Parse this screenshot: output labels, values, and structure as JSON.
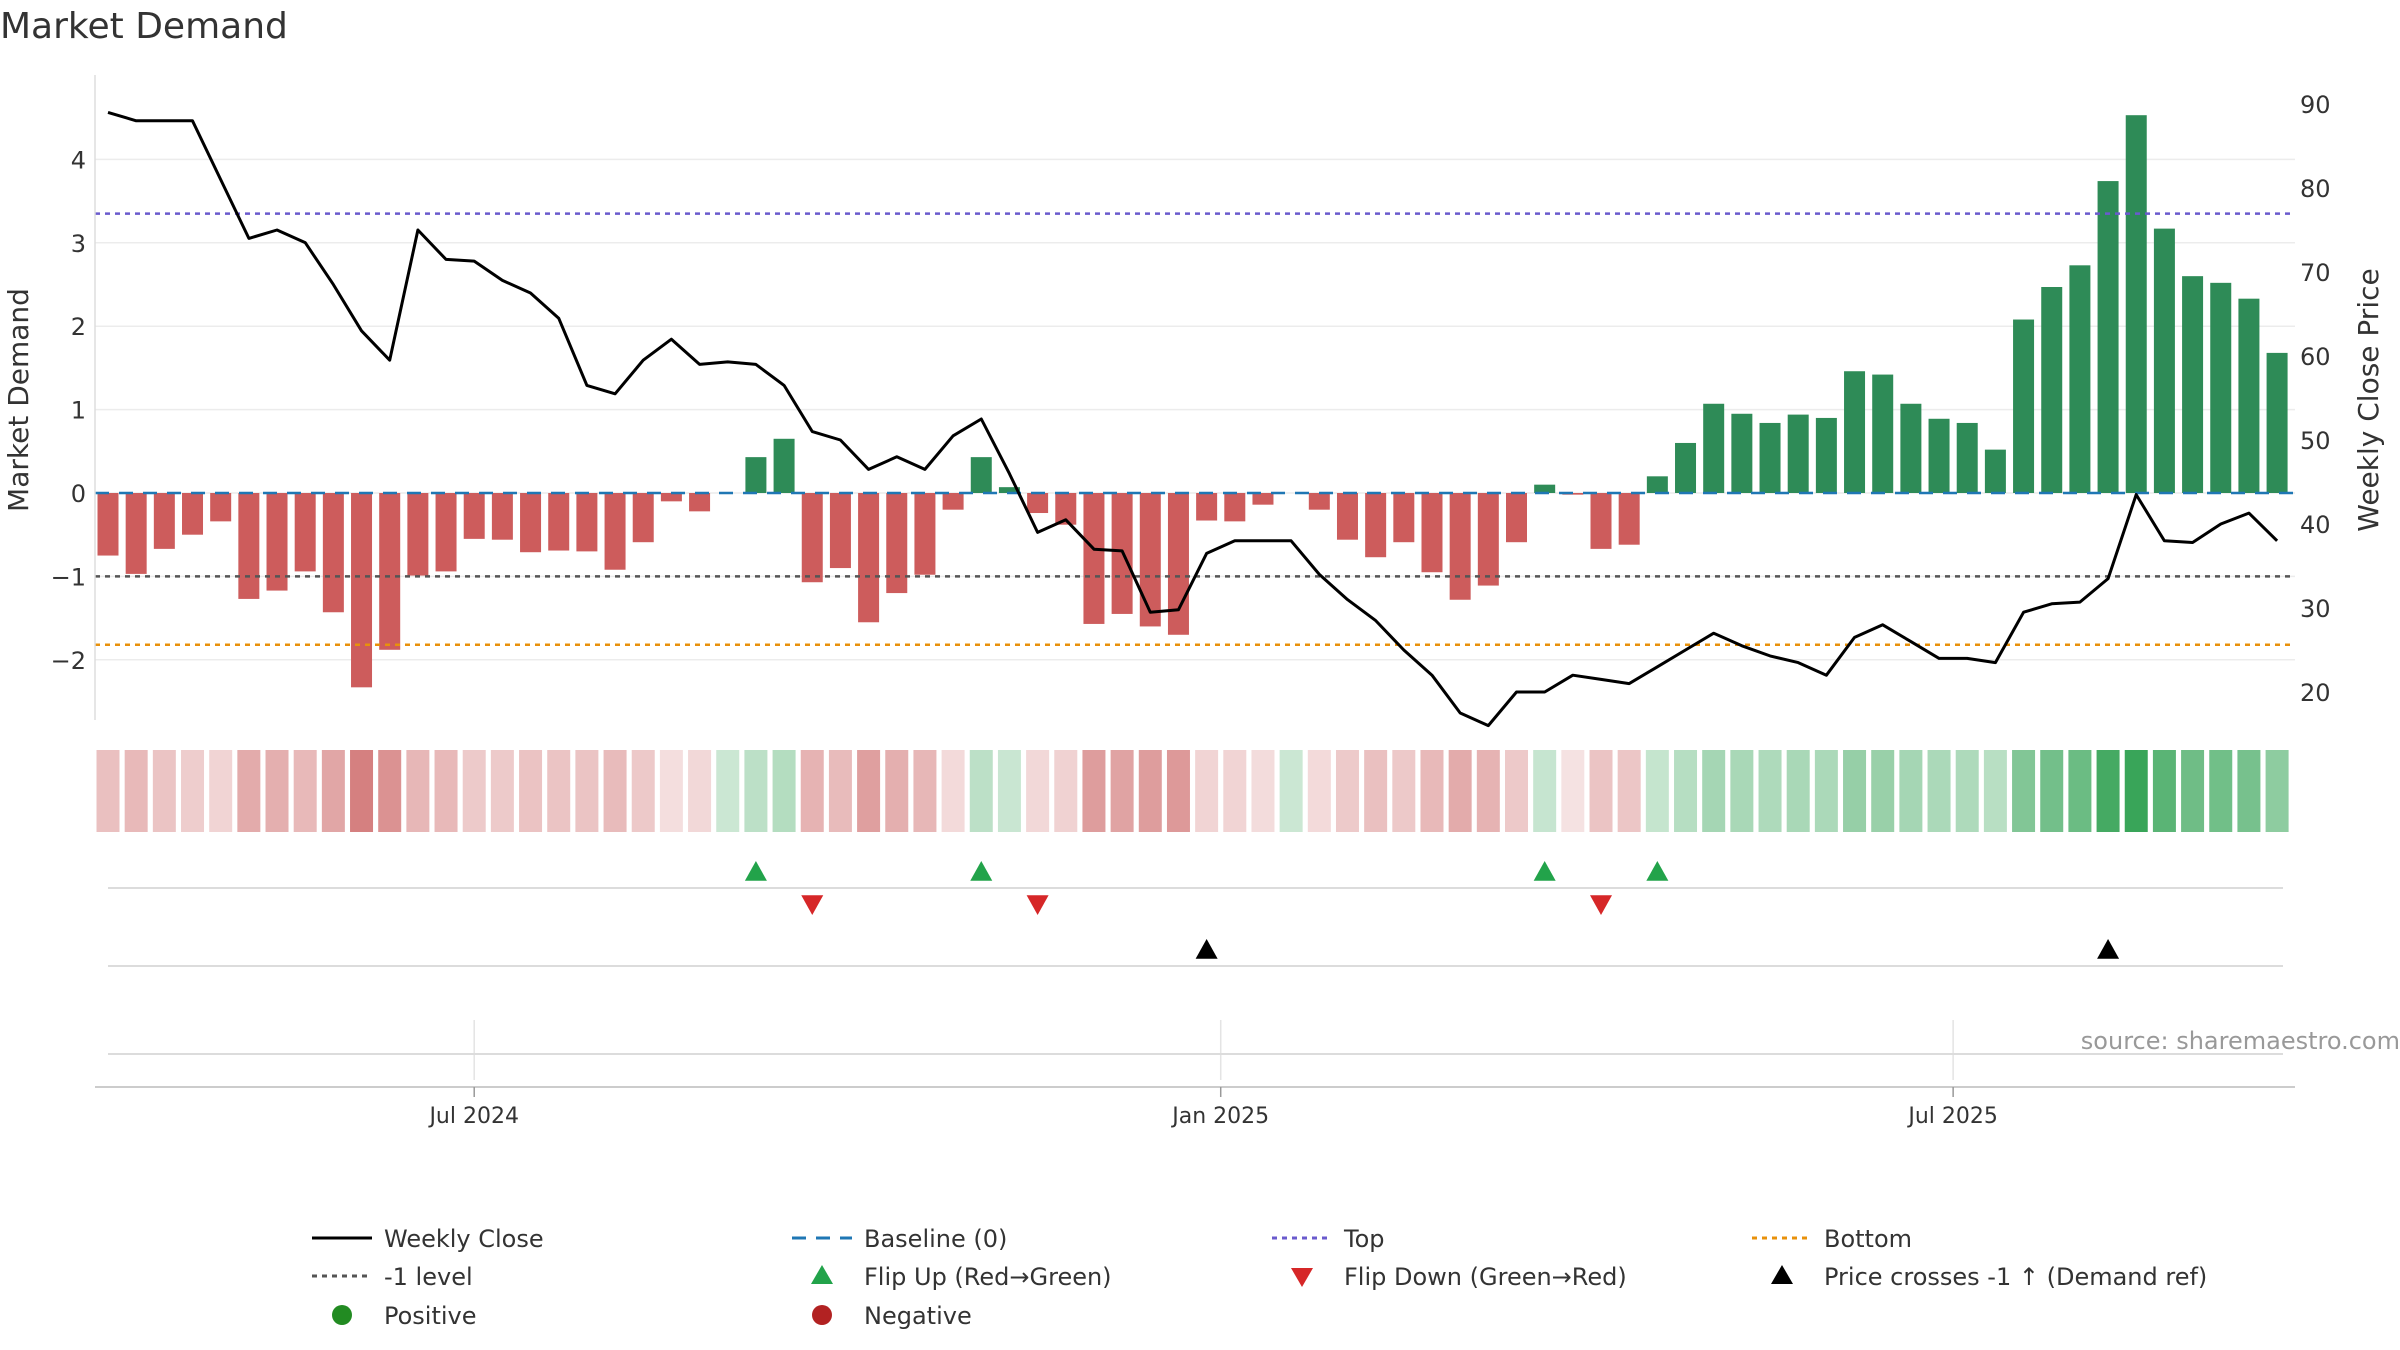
{
  "chart_data": {
    "type": "bar+line",
    "title": "Market Demand",
    "ylabel_left": "Market Demand",
    "ylabel_right": "Weekly Close Price",
    "ylim_left": [
      -2.7,
      5.0
    ],
    "ylim_right": [
      17,
      93
    ],
    "yticks_left": [
      {
        "value": -2,
        "label": "−2"
      },
      {
        "value": -1,
        "label": "−1"
      },
      {
        "value": 0,
        "label": "0"
      },
      {
        "value": 1,
        "label": "1"
      },
      {
        "value": 2,
        "label": "2"
      },
      {
        "value": 3,
        "label": "3"
      },
      {
        "value": 4,
        "label": "4"
      }
    ],
    "yticks_right": [
      20,
      30,
      40,
      50,
      60,
      70,
      80,
      90
    ],
    "x_tick_labels": [
      {
        "label": "Jul 2024",
        "week": 13
      },
      {
        "label": "Jan 2025",
        "week": 39.5
      },
      {
        "label": "Jul 2025",
        "week": 65.5
      }
    ],
    "lines": {
      "top": 3.35,
      "bottom": -1.82,
      "minus1": -1.0,
      "baseline": 0
    },
    "demand": [
      -0.75,
      -0.97,
      -0.67,
      -0.5,
      -0.34,
      -1.27,
      -1.17,
      -0.94,
      -1.43,
      -2.33,
      -1.88,
      -0.99,
      -0.94,
      -0.55,
      -0.56,
      -0.71,
      -0.69,
      -0.7,
      -0.92,
      -0.59,
      -0.1,
      -0.22,
      0.0,
      0.43,
      0.65,
      -1.07,
      -0.9,
      -1.55,
      -1.2,
      -0.98,
      -0.2,
      0.43,
      0.07,
      -0.24,
      -0.38,
      -1.57,
      -1.45,
      -1.6,
      -1.7,
      -0.33,
      -0.34,
      -0.14,
      0.0,
      -0.2,
      -0.56,
      -0.77,
      -0.59,
      -0.95,
      -1.28,
      -1.11,
      -0.59,
      0.1,
      -0.02,
      -0.67,
      -0.62,
      0.2,
      0.6,
      1.07,
      0.95,
      0.84,
      0.94,
      0.9,
      1.46,
      1.42,
      1.07,
      0.89,
      0.84,
      0.52,
      2.08,
      2.47,
      2.73,
      3.74,
      4.53,
      3.17,
      2.6,
      2.52,
      2.33,
      1.68
    ],
    "close": [
      89.0,
      88.0,
      88.0,
      88.0,
      81.0,
      74.0,
      75.0,
      73.5,
      68.5,
      63.0,
      59.5,
      75.0,
      71.5,
      71.3,
      69.0,
      67.5,
      64.5,
      56.5,
      55.5,
      59.5,
      62.0,
      59.0,
      59.3,
      59.0,
      56.5,
      51.0,
      50.0,
      46.5,
      48.0,
      46.5,
      50.5,
      52.5,
      46.0,
      39.0,
      40.5,
      37.0,
      36.8,
      29.5,
      29.8,
      36.5,
      38.0,
      38.0,
      38.0,
      34.0,
      31.0,
      28.5,
      25.0,
      22.0,
      17.5,
      16.0,
      20.0,
      20.0,
      22.0,
      21.5,
      21.0,
      23.0,
      25.0,
      27.0,
      25.5,
      24.3,
      23.5,
      22.0,
      26.5,
      28.0,
      26.0,
      24.0,
      24.0,
      23.5,
      29.5,
      30.5,
      30.7,
      33.5,
      43.5,
      38.0,
      37.8,
      40.0,
      41.3,
      38.0
    ],
    "heat_strip": "color intensity proportional to demand (green positive, red negative)",
    "flip_up_weeks": [
      23,
      31,
      51,
      55
    ],
    "flip_down_weeks": [
      25,
      33,
      53
    ],
    "price_cross_weeks": [
      39,
      71
    ],
    "legend": [
      {
        "label": "Weekly Close",
        "marker": "line",
        "color": "#000000"
      },
      {
        "label": "Baseline (0)",
        "marker": "dash",
        "color": "#1f77b4"
      },
      {
        "label": "Top",
        "marker": "dot",
        "color": "#6a5acd"
      },
      {
        "label": "Bottom",
        "marker": "dot",
        "color": "#e8910b"
      },
      {
        "label": "-1 level",
        "marker": "dot",
        "color": "#555555"
      },
      {
        "label": "Flip Up (Red→Green)",
        "marker": "tri-up",
        "color": "#22a34a"
      },
      {
        "label": "Flip Down (Green→Red)",
        "marker": "tri-down",
        "color": "#d62728"
      },
      {
        "label": "Price crosses -1 ↑ (Demand ref)",
        "marker": "tri-up",
        "color": "#000000"
      },
      {
        "label": "Positive",
        "marker": "circle",
        "color": "#228b22"
      },
      {
        "label": "Negative",
        "marker": "circle",
        "color": "#b22222"
      }
    ],
    "colors": {
      "positive": "#2e8b57",
      "negative": "#cd5c5c",
      "line": "#000000"
    },
    "source": "source: sharemaestro.com"
  }
}
